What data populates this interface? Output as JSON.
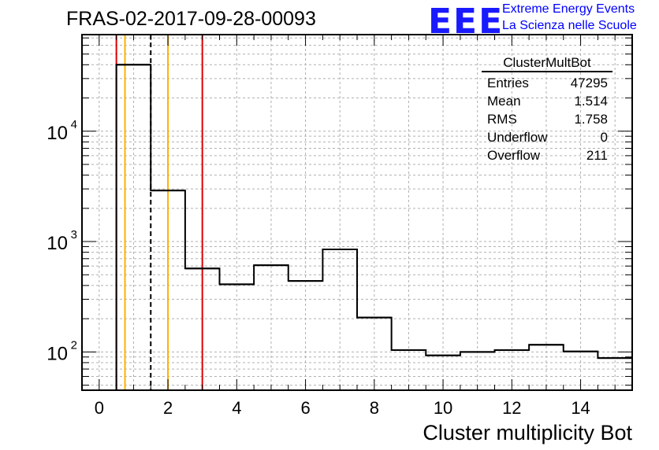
{
  "title": "FRAS-02-2017-09-28-00093",
  "logo": {
    "mark": "EEE",
    "line1": "Extreme Energy Events",
    "line2": "La Scienza nelle Scuole",
    "color": "#1a1aff"
  },
  "stats": {
    "name": "ClusterMultBot",
    "rows": [
      {
        "label": "Entries",
        "value": "47295"
      },
      {
        "label": "Mean",
        "value": "1.514"
      },
      {
        "label": "RMS",
        "value": "1.758"
      },
      {
        "label": "Underflow",
        "value": "0"
      },
      {
        "label": "Overflow",
        "value": "211"
      }
    ]
  },
  "chart_data": {
    "type": "bar",
    "style": "step-histogram",
    "title": "FRAS-02-2017-09-28-00093",
    "xlabel": "Cluster multiplicity Bot",
    "ylabel": "",
    "xlim": [
      -0.5,
      15.5
    ],
    "ylim": [
      45,
      75000
    ],
    "yscale": "log",
    "grid": true,
    "x_ticks": [
      "0",
      "2",
      "4",
      "6",
      "8",
      "10",
      "12",
      "14"
    ],
    "y_ticks": [
      {
        "value": 100,
        "base": "10",
        "exp": "2"
      },
      {
        "value": 1000,
        "base": "10",
        "exp": "3"
      },
      {
        "value": 10000,
        "base": "10",
        "exp": "4"
      }
    ],
    "bins": [
      {
        "lo": 0.5,
        "hi": 1.5,
        "count": 40000
      },
      {
        "lo": 1.5,
        "hi": 2.5,
        "count": 2900
      },
      {
        "lo": 2.5,
        "hi": 3.5,
        "count": 570
      },
      {
        "lo": 3.5,
        "hi": 4.5,
        "count": 410
      },
      {
        "lo": 4.5,
        "hi": 5.5,
        "count": 610
      },
      {
        "lo": 5.5,
        "hi": 6.5,
        "count": 440
      },
      {
        "lo": 6.5,
        "hi": 7.5,
        "count": 850
      },
      {
        "lo": 7.5,
        "hi": 8.5,
        "count": 205
      },
      {
        "lo": 8.5,
        "hi": 9.5,
        "count": 104
      },
      {
        "lo": 9.5,
        "hi": 10.5,
        "count": 93
      },
      {
        "lo": 10.5,
        "hi": 11.5,
        "count": 100
      },
      {
        "lo": 11.5,
        "hi": 12.5,
        "count": 104
      },
      {
        "lo": 12.5,
        "hi": 13.5,
        "count": 116
      },
      {
        "lo": 13.5,
        "hi": 14.5,
        "count": 101
      },
      {
        "lo": 14.5,
        "hi": 15.5,
        "count": 88
      }
    ],
    "vertical_lines": [
      {
        "x": 0.5,
        "color": "#e00000",
        "style": "solid"
      },
      {
        "x": 0.75,
        "color": "#ffb000",
        "style": "solid"
      },
      {
        "x": 1.5,
        "color": "#000000",
        "style": "dashed"
      },
      {
        "x": 2.0,
        "color": "#ffb000",
        "style": "solid"
      },
      {
        "x": 3.0,
        "color": "#e00000",
        "style": "solid"
      }
    ]
  }
}
